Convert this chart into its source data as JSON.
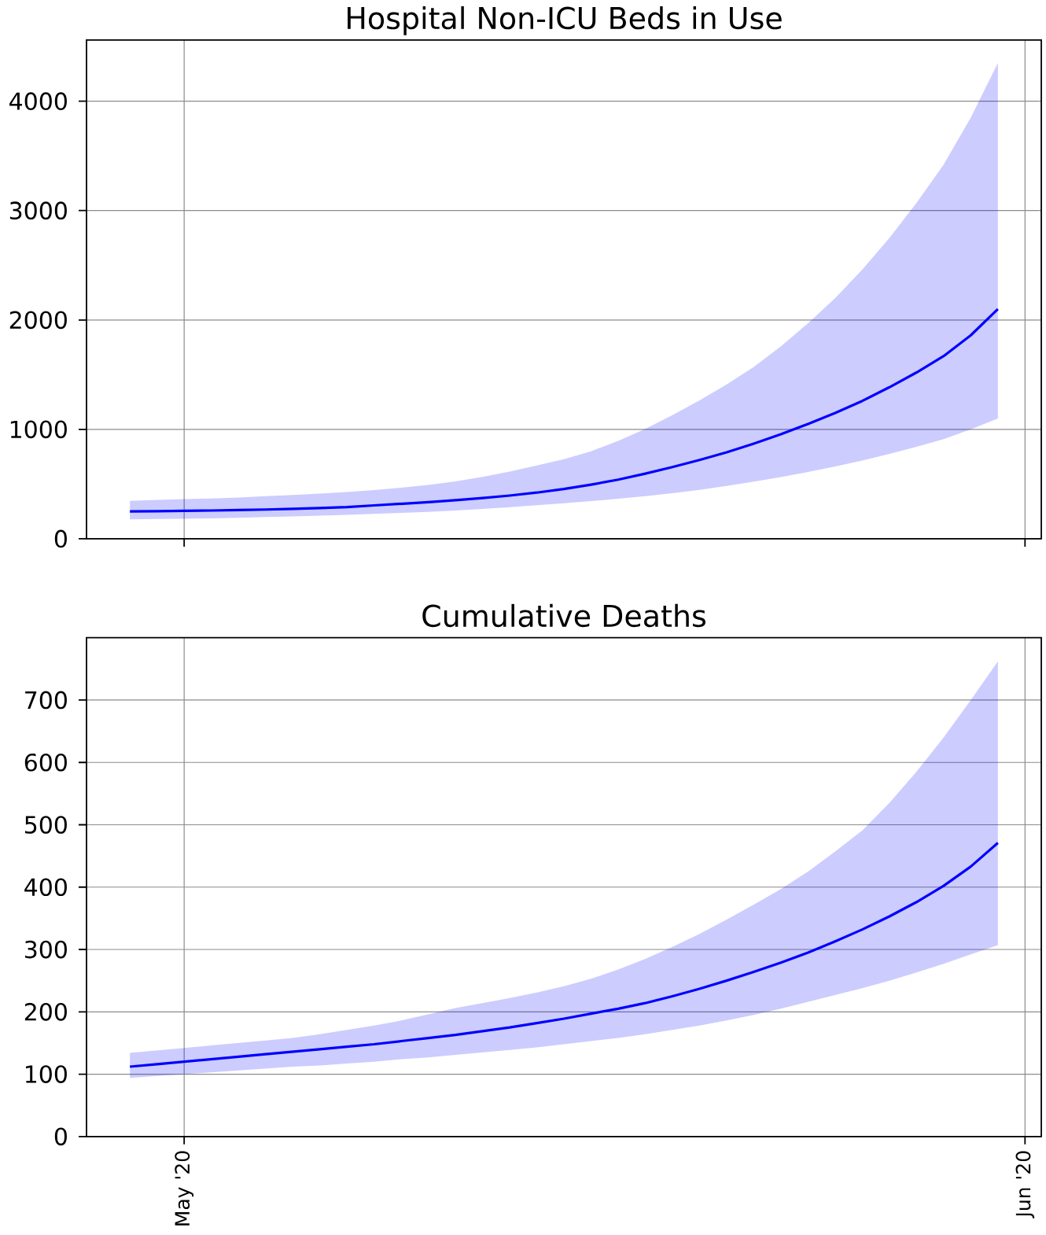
{
  "chart_data": [
    {
      "type": "line",
      "title": "Hospital Non-ICU Beds in Use",
      "x": [
        "2020-04-29",
        "2020-04-30",
        "2020-05-01",
        "2020-05-02",
        "2020-05-03",
        "2020-05-04",
        "2020-05-05",
        "2020-05-06",
        "2020-05-07",
        "2020-05-08",
        "2020-05-09",
        "2020-05-10",
        "2020-05-11",
        "2020-05-12",
        "2020-05-13",
        "2020-05-14",
        "2020-05-15",
        "2020-05-16",
        "2020-05-17",
        "2020-05-18",
        "2020-05-19",
        "2020-05-20",
        "2020-05-21",
        "2020-05-22",
        "2020-05-23",
        "2020-05-24",
        "2020-05-25",
        "2020-05-26",
        "2020-05-27",
        "2020-05-28",
        "2020-05-29",
        "2020-05-30",
        "2020-05-31"
      ],
      "series": [
        {
          "color": "#0000ff",
          "values": [
            250,
            252,
            255,
            258,
            262,
            267,
            273,
            280,
            289,
            305,
            320,
            335,
            352,
            372,
            395,
            422,
            455,
            495,
            540,
            595,
            655,
            720,
            790,
            870,
            955,
            1050,
            1150,
            1260,
            1385,
            1520,
            1670,
            1860,
            2100
          ],
          "lower": [
            178,
            180,
            183,
            187,
            192,
            198,
            204,
            211,
            219,
            227,
            236,
            246,
            259,
            273,
            289,
            306,
            324,
            344,
            366,
            390,
            416,
            447,
            483,
            522,
            563,
            610,
            660,
            715,
            775,
            840,
            910,
            1000,
            1100
          ],
          "upper": [
            346,
            355,
            363,
            368,
            377,
            389,
            400,
            413,
            428,
            445,
            466,
            492,
            525,
            565,
            615,
            670,
            728,
            800,
            895,
            1005,
            1130,
            1265,
            1410,
            1570,
            1760,
            1970,
            2200,
            2460,
            2750,
            3070,
            3420,
            3850,
            4350
          ]
        }
      ],
      "xlim": [
        "2020-04-27T09:36",
        "2020-06-01T14:24"
      ],
      "ylim": [
        0,
        4560
      ],
      "xticks": [
        {
          "value": "2020-05-01",
          "label": null
        },
        {
          "value": "2020-06-01",
          "label": null
        }
      ],
      "yticks": [
        0,
        1000,
        2000,
        3000,
        4000
      ],
      "grid": true,
      "tick_labels": "y"
    },
    {
      "type": "line",
      "title": "Cumulative Deaths",
      "x": [
        "2020-04-29",
        "2020-04-30",
        "2020-05-01",
        "2020-05-02",
        "2020-05-03",
        "2020-05-04",
        "2020-05-05",
        "2020-05-06",
        "2020-05-07",
        "2020-05-08",
        "2020-05-09",
        "2020-05-10",
        "2020-05-11",
        "2020-05-12",
        "2020-05-13",
        "2020-05-14",
        "2020-05-15",
        "2020-05-16",
        "2020-05-17",
        "2020-05-18",
        "2020-05-19",
        "2020-05-20",
        "2020-05-21",
        "2020-05-22",
        "2020-05-23",
        "2020-05-24",
        "2020-05-25",
        "2020-05-26",
        "2020-05-27",
        "2020-05-28",
        "2020-05-29",
        "2020-05-30",
        "2020-05-31"
      ],
      "series": [
        {
          "color": "#0000ff",
          "values": [
            112,
            116,
            120,
            124,
            128,
            132,
            136,
            140,
            144,
            148,
            153,
            158,
            163,
            169,
            175,
            182,
            189,
            197,
            205,
            214,
            225,
            237,
            250,
            264,
            279,
            295,
            313,
            332,
            353,
            376,
            402,
            433,
            471
          ],
          "lower": [
            94,
            97,
            100,
            103,
            106,
            109,
            112,
            114,
            117,
            120,
            124,
            127,
            131,
            135,
            139,
            143,
            148,
            153,
            158,
            164,
            171,
            178,
            186,
            195,
            205,
            216,
            227,
            238,
            250,
            263,
            277,
            292,
            307
          ],
          "upper": [
            134,
            138,
            142,
            146,
            150,
            154,
            158,
            164,
            171,
            178,
            186,
            196,
            206,
            214,
            222,
            231,
            241,
            253,
            268,
            285,
            304,
            325,
            348,
            372,
            397,
            425,
            457,
            491,
            535,
            585,
            640,
            700,
            762
          ]
        }
      ],
      "xlim": [
        "2020-04-27T09:36",
        "2020-06-01T14:24"
      ],
      "ylim": [
        0,
        800
      ],
      "xticks": [
        {
          "value": "2020-05-01",
          "label": "May '20"
        },
        {
          "value": "2020-06-01",
          "label": "Jun '20"
        }
      ],
      "yticks": [
        0,
        100,
        200,
        300,
        400,
        500,
        600,
        700
      ],
      "grid": true
    }
  ]
}
